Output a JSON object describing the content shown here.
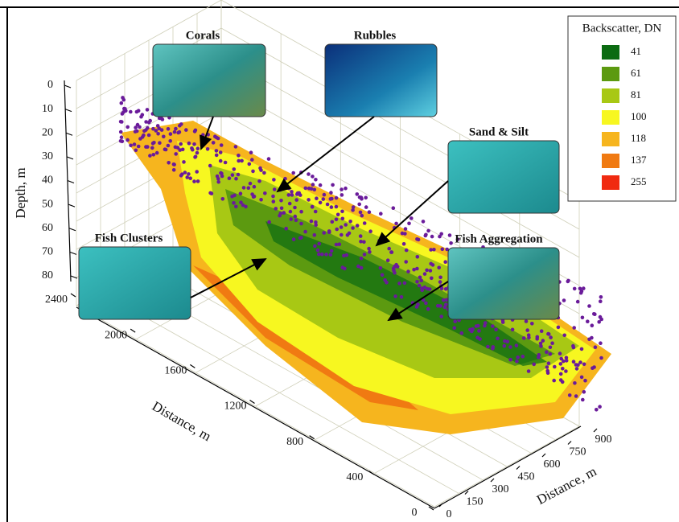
{
  "chart_data": {
    "type": "surface3d",
    "xlabel": "Distance, m",
    "xlim": [
      0,
      2400
    ],
    "xticks": [
      0,
      400,
      800,
      1200,
      1600,
      2000,
      2400
    ],
    "ylabel": "Distance, m",
    "ylim": [
      0,
      900
    ],
    "yticks": [
      0,
      150,
      300,
      450,
      600,
      750,
      900
    ],
    "zlabel": "Depth, m",
    "zlim": [
      0,
      80
    ],
    "zticks": [
      0,
      10,
      20,
      30,
      40,
      50,
      60,
      70,
      80
    ],
    "grid": true,
    "legend": {
      "title": "Backscatter, DN",
      "corner": "top-right",
      "entries": [
        {
          "label": 41,
          "color": "#0b6b12"
        },
        {
          "label": 61,
          "color": "#5c9a10"
        },
        {
          "label": 81,
          "color": "#a8c814"
        },
        {
          "label": 100,
          "color": "#f7f720"
        },
        {
          "label": 118,
          "color": "#f6b51e"
        },
        {
          "label": 137,
          "color": "#f07a12"
        },
        {
          "label": 255,
          "color": "#f02a10"
        }
      ]
    },
    "point_color": "#6a1b9a",
    "annotations": [
      "Corals",
      "Rubbles",
      "Sand & Silt",
      "Fish Clusters",
      "Fish Aggregation"
    ]
  }
}
